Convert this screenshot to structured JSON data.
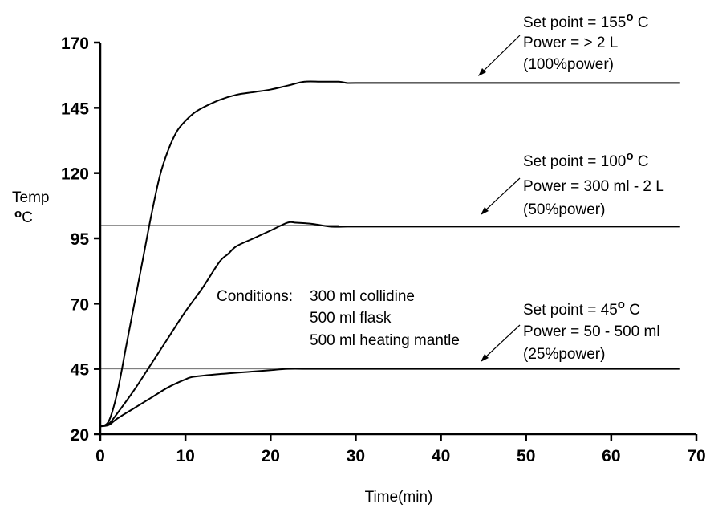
{
  "chart_data": {
    "type": "line",
    "title": "",
    "xlabel": "Time(min)",
    "ylabel": "Temp",
    "ylabel_unit_symbol": "o",
    "ylabel_unit": "C",
    "xlim": [
      0,
      70
    ],
    "ylim": [
      20,
      170
    ],
    "xticks": [
      0,
      10,
      20,
      30,
      40,
      50,
      60,
      70
    ],
    "yticks": [
      20,
      45,
      70,
      95,
      120,
      145,
      170
    ],
    "grid": false,
    "reference_lines": [
      100,
      45
    ],
    "series": [
      {
        "x": [
          0,
          1,
          2,
          3,
          4,
          5,
          6,
          7,
          8,
          9,
          10,
          11,
          12,
          14,
          16,
          18,
          20,
          22,
          24,
          26,
          28,
          29,
          30,
          40,
          50,
          60,
          68
        ],
        "y": [
          23,
          25,
          36,
          53,
          70,
          87,
          104,
          119,
          129,
          136,
          140,
          143,
          145,
          148,
          150,
          151,
          152,
          153.5,
          155,
          155,
          155,
          154.5,
          154.5,
          154.5,
          154.5,
          154.5,
          154.5
        ]
      },
      {
        "x": [
          0,
          1,
          2,
          4,
          6,
          8,
          10,
          12,
          14,
          15,
          16,
          18,
          20,
          22,
          23,
          25,
          27,
          29,
          30,
          40,
          50,
          60,
          68
        ],
        "y": [
          23,
          24,
          28,
          37,
          47,
          57,
          67,
          76,
          86,
          89,
          92,
          95,
          98,
          101,
          101,
          100.5,
          99.5,
          99.5,
          99.5,
          99.5,
          99.5,
          99.5,
          99.5
        ]
      },
      {
        "x": [
          0,
          1,
          2,
          4,
          6,
          8,
          10,
          11,
          14,
          18,
          20,
          22,
          25,
          30,
          40,
          50,
          60,
          68
        ],
        "y": [
          23,
          23.5,
          26,
          30,
          34,
          38,
          41,
          42,
          43,
          44,
          44.5,
          45,
          45,
          45,
          45,
          45,
          45,
          45
        ]
      }
    ],
    "annotations": [
      {
        "setpoint_prefix": "Set point = 155",
        "setpoint_symbol": "o",
        "setpoint_suffix": " C",
        "line2": "Power = > 2 L",
        "line3": "(100%power)"
      },
      {
        "setpoint_prefix": "Set point = 100",
        "setpoint_symbol": "o",
        "setpoint_suffix": " C",
        "line2": "Power = 300 ml - 2 L",
        "line3": "(50%power)"
      },
      {
        "setpoint_prefix": "Set point = 45",
        "setpoint_symbol": "o",
        "setpoint_suffix": " C",
        "line2": "Power = 50 - 500 ml",
        "line3": "(25%power)"
      }
    ],
    "conditions": {
      "label": "Conditions:",
      "items": [
        "300 ml collidine",
        "500 ml  flask",
        "500 ml heating mantle"
      ]
    }
  }
}
